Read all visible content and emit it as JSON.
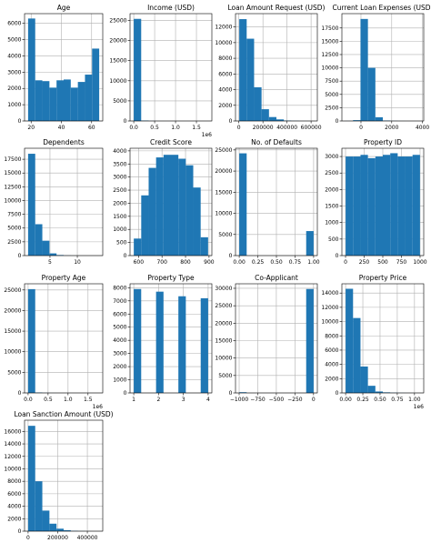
{
  "chart_data": [
    {
      "type": "histogram",
      "title": "Age",
      "color": "#1f77b4",
      "grid": true,
      "bins": [
        18,
        22.7,
        27.4,
        32.1,
        36.8,
        41.5,
        46.2,
        50.9,
        55.6,
        60.3,
        65
      ],
      "counts": [
        6300,
        2500,
        2450,
        2050,
        2500,
        2550,
        2050,
        2400,
        2850,
        4450
      ],
      "xlim": [
        15.65,
        67.35
      ],
      "xticks": [
        20,
        40,
        60
      ],
      "ylim": [
        0,
        6600
      ],
      "yticks": [
        0,
        1000,
        2000,
        3000,
        4000,
        5000,
        6000
      ]
    },
    {
      "type": "histogram",
      "title": "Income (USD)",
      "color": "#1f77b4",
      "grid": true,
      "x_offset_label": "1e6",
      "bins": [
        0,
        178000,
        356000,
        534000,
        712000,
        890000,
        1068000,
        1246000,
        1424000,
        1602000,
        1780000
      ],
      "counts": [
        25400,
        100,
        20,
        5,
        2,
        1,
        0,
        0,
        0,
        1
      ],
      "xlim": [
        -89000,
        1869000
      ],
      "xticks": [
        {
          "value": 0,
          "label": "0.0"
        },
        {
          "value": 500000,
          "label": "0.5"
        },
        {
          "value": 1000000,
          "label": "1.0"
        },
        {
          "value": 1500000,
          "label": "1.5"
        }
      ],
      "ylim": [
        0,
        26700
      ],
      "yticks": [
        0,
        5000,
        10000,
        15000,
        20000,
        25000
      ]
    },
    {
      "type": "histogram",
      "title": "Loan Amount Request (USD)",
      "color": "#1f77b4",
      "grid": true,
      "bins": [
        3000,
        64800,
        126600,
        188400,
        250200,
        312000,
        373800,
        435600,
        497400,
        559200,
        621000
      ],
      "counts": [
        13000,
        10500,
        4300,
        1500,
        500,
        200,
        50,
        20,
        5,
        2
      ],
      "xlim": [
        -28000,
        652000
      ],
      "xticks": [
        0,
        200000,
        400000,
        600000
      ],
      "ylim": [
        0,
        13700
      ],
      "yticks": [
        0,
        2000,
        4000,
        6000,
        8000,
        10000,
        12000
      ]
    },
    {
      "type": "histogram",
      "title": "Current Loan Expenses (USD)",
      "color": "#1f77b4",
      "grid": true,
      "bins": [
        -999,
        -515,
        -31,
        453,
        937,
        1421,
        1905,
        2389,
        2873,
        3357,
        3841
      ],
      "counts": [
        10,
        150,
        19200,
        10000,
        700,
        80,
        20,
        5,
        2,
        1
      ],
      "xlim": [
        -1241,
        4083
      ],
      "xticks": [
        0,
        2000,
        4000
      ],
      "ylim": [
        0,
        20200
      ],
      "yticks": [
        0,
        2500,
        5000,
        7500,
        10000,
        12500,
        15000,
        17500
      ]
    },
    {
      "type": "histogram",
      "title": "Dependents",
      "color": "#1f77b4",
      "grid": true,
      "bins": [
        1,
        2.3,
        3.6,
        4.9,
        6.2,
        7.5,
        8.8,
        10.1,
        11.4,
        12.7,
        14
      ],
      "counts": [
        18500,
        5700,
        2700,
        400,
        100,
        20,
        5,
        2,
        1,
        1
      ],
      "xlim": [
        0.35,
        14.65
      ],
      "xticks": [
        5,
        10
      ],
      "ylim": [
        0,
        19500
      ],
      "yticks": [
        0,
        2500,
        5000,
        7500,
        10000,
        12500,
        15000,
        17500
      ]
    },
    {
      "type": "histogram",
      "title": "Credit Score",
      "color": "#1f77b4",
      "grid": true,
      "bins": [
        580,
        611.6,
        643.2,
        674.8,
        706.4,
        738,
        769.6,
        801.2,
        832.8,
        864.4,
        896
      ],
      "counts": [
        650,
        2300,
        3350,
        3750,
        3850,
        3850,
        3700,
        3450,
        2600,
        700
      ],
      "xlim": [
        564,
        912
      ],
      "xticks": [
        600,
        700,
        800,
        900
      ],
      "ylim": [
        0,
        4100
      ],
      "yticks": [
        0,
        500,
        1000,
        1500,
        2000,
        2500,
        3000,
        3500,
        4000
      ]
    },
    {
      "type": "histogram",
      "title": "No. of Defaults",
      "color": "#1f77b4",
      "grid": true,
      "bins": [
        0,
        0.1,
        0.2,
        0.3,
        0.4,
        0.5,
        0.6,
        0.7,
        0.8,
        0.9,
        1
      ],
      "counts": [
        24200,
        0,
        0,
        0,
        0,
        0,
        0,
        0,
        0,
        5800
      ],
      "xlim": [
        -0.05,
        1.05
      ],
      "xticks": [
        {
          "value": 0,
          "label": "0.00"
        },
        {
          "value": 0.25,
          "label": "0.25"
        },
        {
          "value": 0.5,
          "label": "0.50"
        },
        {
          "value": 0.75,
          "label": "0.75"
        },
        {
          "value": 1,
          "label": "1.00"
        }
      ],
      "ylim": [
        0,
        25400
      ],
      "yticks": [
        0,
        5000,
        10000,
        15000,
        20000,
        25000
      ]
    },
    {
      "type": "histogram",
      "title": "Property ID",
      "color": "#1f77b4",
      "grid": true,
      "bins": [
        1,
        100.8,
        200.6,
        300.4,
        400.2,
        500,
        599.8,
        699.6,
        799.4,
        899.2,
        999
      ],
      "counts": [
        3000,
        3000,
        3050,
        2950,
        3000,
        3050,
        3100,
        3000,
        3000,
        3050
      ],
      "xlim": [
        -49,
        1049
      ],
      "xticks": [
        0,
        250,
        500,
        750,
        1000
      ],
      "ylim": [
        0,
        3250
      ],
      "yticks": [
        0,
        500,
        1000,
        1500,
        2000,
        2500,
        3000
      ]
    },
    {
      "type": "histogram",
      "title": "Property Age",
      "color": "#1f77b4",
      "grid": true,
      "x_offset_label": "1e6",
      "bins": [
        0,
        178000,
        356000,
        534000,
        712000,
        890000,
        1068000,
        1246000,
        1424000,
        1602000,
        1780000
      ],
      "counts": [
        25200,
        100,
        20,
        5,
        2,
        1,
        0,
        0,
        0,
        1
      ],
      "xlim": [
        -89000,
        1869000
      ],
      "xticks": [
        {
          "value": 0,
          "label": "0.0"
        },
        {
          "value": 500000,
          "label": "0.5"
        },
        {
          "value": 1000000,
          "label": "1.0"
        },
        {
          "value": 1500000,
          "label": "1.5"
        }
      ],
      "ylim": [
        0,
        26500
      ],
      "yticks": [
        0,
        5000,
        10000,
        15000,
        20000,
        25000
      ]
    },
    {
      "type": "histogram",
      "title": "Property Type",
      "color": "#1f77b4",
      "grid": true,
      "bins": [
        1,
        1.3,
        1.6,
        1.9,
        2.2,
        2.5,
        2.8,
        3.1,
        3.4,
        3.7,
        4
      ],
      "counts": [
        7900,
        0,
        0,
        7700,
        0,
        0,
        7350,
        0,
        0,
        7200
      ],
      "xlim": [
        0.85,
        4.15
      ],
      "xticks": [
        1,
        2,
        3,
        4
      ],
      "ylim": [
        0,
        8300
      ],
      "yticks": [
        0,
        1000,
        2000,
        3000,
        4000,
        5000,
        6000,
        7000,
        8000
      ]
    },
    {
      "type": "histogram",
      "title": "Co-Applicant",
      "color": "#1f77b4",
      "grid": true,
      "bins": [
        -999,
        -899,
        -799,
        -699,
        -599,
        -499,
        -399,
        -299,
        -199,
        -99,
        1
      ],
      "counts": [
        200,
        0,
        0,
        0,
        0,
        0,
        0,
        0,
        0,
        29800
      ],
      "xlim": [
        -1049,
        51
      ],
      "xticks": [
        {
          "value": -1000,
          "label": "−1000"
        },
        {
          "value": -750,
          "label": "−750"
        },
        {
          "value": -500,
          "label": "−500"
        },
        {
          "value": -250,
          "label": "−250"
        },
        0
      ],
      "ylim": [
        0,
        31300
      ],
      "yticks": [
        0,
        5000,
        10000,
        15000,
        20000,
        25000,
        30000
      ]
    },
    {
      "type": "histogram",
      "title": "Property Price",
      "color": "#1f77b4",
      "grid": true,
      "x_offset_label": "1e6",
      "bins": [
        0,
        108000,
        216000,
        324000,
        432000,
        540000,
        648000,
        756000,
        864000,
        972000,
        1080000
      ],
      "counts": [
        14600,
        10500,
        3700,
        1000,
        200,
        80,
        30,
        10,
        5,
        2
      ],
      "xlim": [
        -54000,
        1134000
      ],
      "xticks": [
        {
          "value": 0,
          "label": "0.00"
        },
        {
          "value": 250000,
          "label": "0.25"
        },
        {
          "value": 500000,
          "label": "0.50"
        },
        {
          "value": 750000,
          "label": "0.75"
        },
        {
          "value": 1000000,
          "label": "1.00"
        }
      ],
      "ylim": [
        0,
        15300
      ],
      "yticks": [
        0,
        2000,
        4000,
        6000,
        8000,
        10000,
        12000,
        14000
      ]
    },
    {
      "type": "histogram",
      "title": "Loan Sanction Amount (USD)",
      "color": "#1f77b4",
      "grid": true,
      "bins": [
        0,
        48000,
        96000,
        144000,
        192000,
        240000,
        288000,
        336000,
        384000,
        432000,
        480000
      ],
      "counts": [
        16900,
        8000,
        3300,
        1200,
        400,
        150,
        50,
        20,
        5,
        2
      ],
      "xlim": [
        -24000,
        504000
      ],
      "xticks": [
        0,
        200000,
        400000
      ],
      "ylim": [
        0,
        17800
      ],
      "yticks": [
        0,
        2000,
        4000,
        6000,
        8000,
        10000,
        12000,
        14000,
        16000
      ]
    }
  ]
}
